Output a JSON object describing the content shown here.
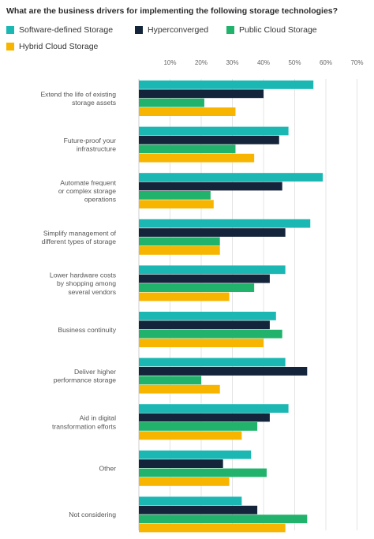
{
  "chart_data": {
    "type": "bar",
    "orientation": "horizontal",
    "title": "What are the business drivers for implementing the following storage technologies?",
    "xlabel": "",
    "ylabel": "",
    "xlim": [
      0,
      70
    ],
    "xticks": [
      "10%",
      "20%",
      "30%",
      "40%",
      "50%",
      "60%",
      "70%"
    ],
    "grid": true,
    "legend_position": "top",
    "categories": [
      [
        "Extend the life of existing",
        "storage assets"
      ],
      [
        "Future-proof your",
        "infrastructure"
      ],
      [
        "Automate frequent",
        "or complex storage",
        "operations"
      ],
      [
        "Simplify management of",
        "different types of storage"
      ],
      [
        "Lower hardware costs",
        "by shopping among",
        "several vendors"
      ],
      [
        "Business continuity"
      ],
      [
        "Deliver higher",
        "performance storage"
      ],
      [
        "Aid in digital",
        "transformation efforts"
      ],
      [
        "Other"
      ],
      [
        "Not considering"
      ]
    ],
    "series": [
      {
        "name": "Software-defined Storage",
        "color": "#1ab7b3",
        "values": [
          56,
          48,
          59,
          55,
          47,
          44,
          47,
          48,
          36,
          33
        ]
      },
      {
        "name": "Hyperconverged",
        "color": "#14243a",
        "values": [
          40,
          45,
          46,
          47,
          42,
          42,
          54,
          42,
          27,
          38
        ]
      },
      {
        "name": "Public Cloud Storage",
        "color": "#21b36b",
        "values": [
          21,
          31,
          23,
          26,
          37,
          46,
          20,
          38,
          41,
          54
        ]
      },
      {
        "name": "Hybrid Cloud Storage",
        "color": "#f7b500",
        "values": [
          31,
          37,
          24,
          26,
          29,
          40,
          26,
          33,
          29,
          47
        ]
      }
    ]
  }
}
